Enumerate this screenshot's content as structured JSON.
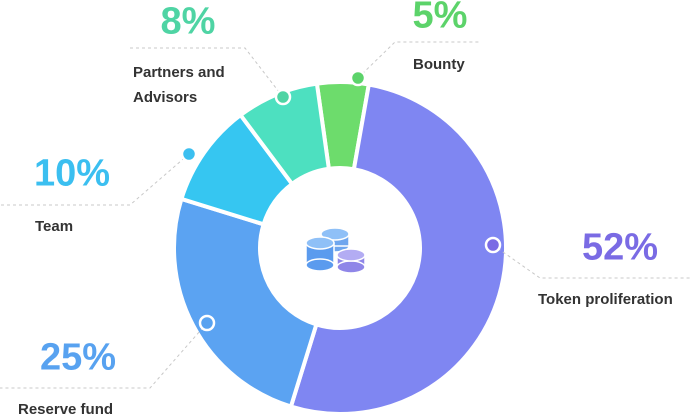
{
  "chart_data": {
    "type": "pie",
    "categories": [
      "Bounty",
      "Token proliferation",
      "Reserve fund",
      "Team",
      "Partners and Advisors"
    ],
    "values": [
      5,
      52,
      25,
      10,
      8
    ],
    "value_labels": [
      "5%",
      "52%",
      "25%",
      "10%",
      "8%"
    ],
    "colors": [
      "#6ddc6c",
      "#7f86f2",
      "#5ba3f2",
      "#36c6f1",
      "#4de0c0"
    ],
    "label_colors": [
      "#5cd36a",
      "#7a6be4",
      "#58a2f0",
      "#3bbff0",
      "#4fd4a4"
    ]
  }
}
